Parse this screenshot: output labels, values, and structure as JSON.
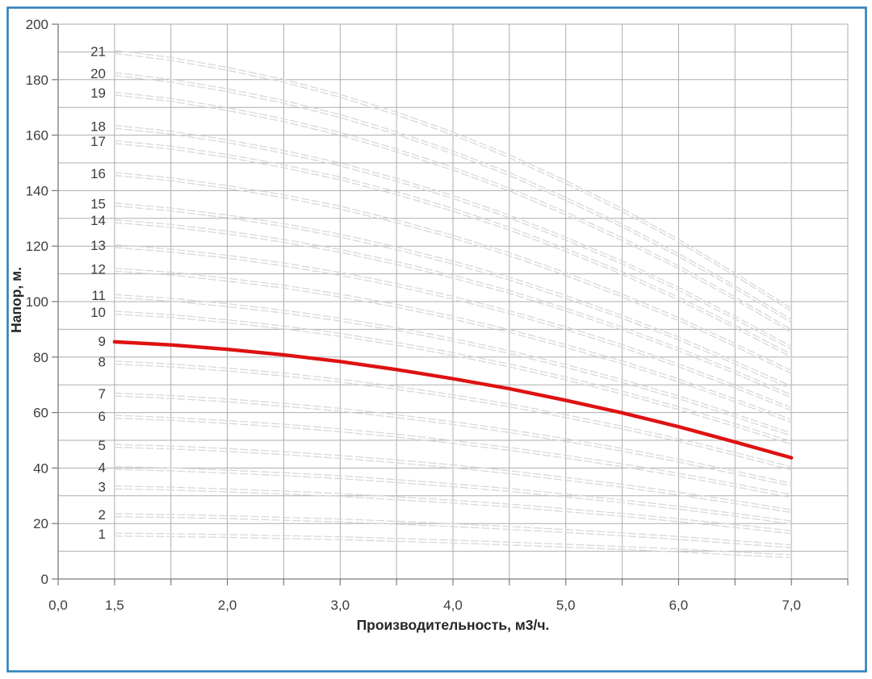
{
  "chart_data": {
    "type": "line",
    "title": "",
    "xlabel": "Производительность, м3/ч.",
    "ylabel": "Напор, м.",
    "grid": true,
    "legend_position": "none",
    "x_axis": {
      "categories": [
        "0,0",
        "1,5",
        "",
        "2,0",
        "",
        "3,0",
        "",
        "4,0",
        "",
        "5,0",
        "",
        "6,0",
        "",
        "7,0",
        ""
      ],
      "visible_tick_labels": [
        "0,0",
        "1,5",
        "2,0",
        "3,0",
        "4,0",
        "5,0",
        "6,0",
        "7,0"
      ],
      "q_values": [
        1.5,
        1.75,
        2.0,
        2.5,
        3.0,
        3.5,
        4.0,
        4.5,
        5.0,
        5.5,
        6.0,
        6.5,
        7.0
      ]
    },
    "y_axis": {
      "min": 0,
      "max": 200,
      "minor_grid_step": 10,
      "label_step": 20
    },
    "y_tick_labels": [
      "0",
      "20",
      "40",
      "60",
      "80",
      "100",
      "120",
      "140",
      "160",
      "180",
      "200"
    ],
    "highlight_series": "9",
    "series": [
      {
        "name": "1",
        "values": [
          16.0,
          15.8,
          15.5,
          15.1,
          14.7,
          14.1,
          13.5,
          12.8,
          12.0,
          11.2,
          10.3,
          9.2,
          8.2
        ]
      },
      {
        "name": "2",
        "values": [
          23.0,
          22.7,
          22.3,
          21.7,
          21.1,
          20.3,
          19.4,
          18.4,
          17.3,
          16.1,
          14.8,
          13.3,
          11.8
        ]
      },
      {
        "name": "3",
        "values": [
          33.0,
          32.6,
          31.9,
          31.2,
          30.3,
          29.1,
          27.9,
          26.5,
          24.8,
          23.1,
          21.2,
          19.1,
          16.9
        ]
      },
      {
        "name": "4",
        "values": [
          40.0,
          39.5,
          38.7,
          37.8,
          36.7,
          35.3,
          33.8,
          32.1,
          30.1,
          28.0,
          25.7,
          23.1,
          20.4
        ]
      },
      {
        "name": "5",
        "values": [
          48.0,
          47.4,
          46.5,
          45.4,
          44.0,
          42.4,
          40.6,
          38.5,
          36.1,
          33.6,
          30.8,
          27.7,
          24.5
        ]
      },
      {
        "name": "6",
        "values": [
          58.5,
          57.7,
          56.6,
          55.3,
          53.6,
          51.7,
          49.4,
          46.9,
          44.1,
          41.0,
          37.6,
          33.8,
          29.9
        ]
      },
      {
        "name": "7",
        "values": [
          66.5,
          65.6,
          64.4,
          62.8,
          61.0,
          58.7,
          56.2,
          53.3,
          50.1,
          46.6,
          42.7,
          38.4,
          34.0
        ]
      },
      {
        "name": "8",
        "values": [
          78.0,
          77.0,
          75.5,
          73.7,
          71.5,
          68.9,
          65.9,
          62.6,
          58.7,
          54.6,
          50.1,
          45.1,
          39.9
        ]
      },
      {
        "name": "9",
        "highlight": true,
        "values": [
          85.5,
          84.4,
          82.8,
          80.8,
          78.4,
          75.5,
          72.2,
          68.6,
          64.4,
          59.9,
          54.9,
          49.4,
          43.7
        ]
      },
      {
        "name": "10",
        "values": [
          96.0,
          94.8,
          92.9,
          90.7,
          88.0,
          84.8,
          81.1,
          77.0,
          72.3,
          67.2,
          61.6,
          55.5,
          49.1
        ]
      },
      {
        "name": "11",
        "values": [
          102.0,
          100.7,
          98.7,
          96.4,
          93.5,
          90.1,
          86.2,
          81.8,
          76.8,
          71.4,
          65.5,
          59.0,
          52.1
        ]
      },
      {
        "name": "12",
        "values": [
          111.5,
          110.1,
          107.9,
          105.4,
          102.2,
          98.5,
          94.2,
          89.4,
          84.0,
          78.1,
          71.6,
          64.4,
          57.0
        ]
      },
      {
        "name": "13",
        "values": [
          120.0,
          118.4,
          116.2,
          113.4,
          110.0,
          106.0,
          101.4,
          96.2,
          90.4,
          84.0,
          77.0,
          69.4,
          61.3
        ]
      },
      {
        "name": "14",
        "values": [
          129.0,
          127.3,
          124.9,
          121.9,
          118.3,
          113.9,
          109.0,
          103.5,
          97.1,
          90.3,
          82.8,
          74.6,
          65.9
        ]
      },
      {
        "name": "15",
        "values": [
          135.0,
          133.2,
          130.7,
          127.6,
          123.8,
          119.2,
          114.1,
          108.3,
          101.7,
          94.5,
          86.7,
          78.0,
          69.0
        ]
      },
      {
        "name": "16",
        "values": [
          146.0,
          144.1,
          141.3,
          138.0,
          133.9,
          128.9,
          123.4,
          117.1,
          109.9,
          102.2,
          93.7,
          84.4,
          74.6
        ]
      },
      {
        "name": "17",
        "values": [
          157.5,
          155.5,
          152.5,
          148.8,
          144.4,
          139.1,
          133.1,
          126.3,
          118.6,
          110.3,
          101.1,
          91.0,
          80.5
        ]
      },
      {
        "name": "18",
        "values": [
          163.0,
          160.9,
          157.8,
          154.0,
          149.5,
          143.9,
          137.7,
          130.7,
          122.7,
          114.1,
          104.6,
          94.2,
          83.3
        ]
      },
      {
        "name": "19",
        "values": [
          175.0,
          172.7,
          169.4,
          165.4,
          160.5,
          154.5,
          147.9,
          140.4,
          131.8,
          122.5,
          112.4,
          101.2,
          89.4
        ]
      },
      {
        "name": "20",
        "values": [
          182.0,
          179.6,
          176.2,
          172.0,
          166.9,
          160.7,
          153.8,
          146.0,
          137.0,
          127.4,
          116.8,
          105.2,
          93.0
        ]
      },
      {
        "name": "21",
        "values": [
          190.0,
          187.5,
          183.9,
          179.6,
          174.2,
          167.8,
          160.6,
          152.4,
          143.1,
          133.0,
          122.0,
          109.8,
          97.1
        ]
      }
    ],
    "colors": {
      "frame": "#2e81bd",
      "grid": "#adadad",
      "axis": "#7a7a7a",
      "text": "#3d3d3d",
      "title_text": "#262626",
      "curve": "#d8d8d8",
      "highlight": "#df1111",
      "background": "#ffffff"
    }
  }
}
